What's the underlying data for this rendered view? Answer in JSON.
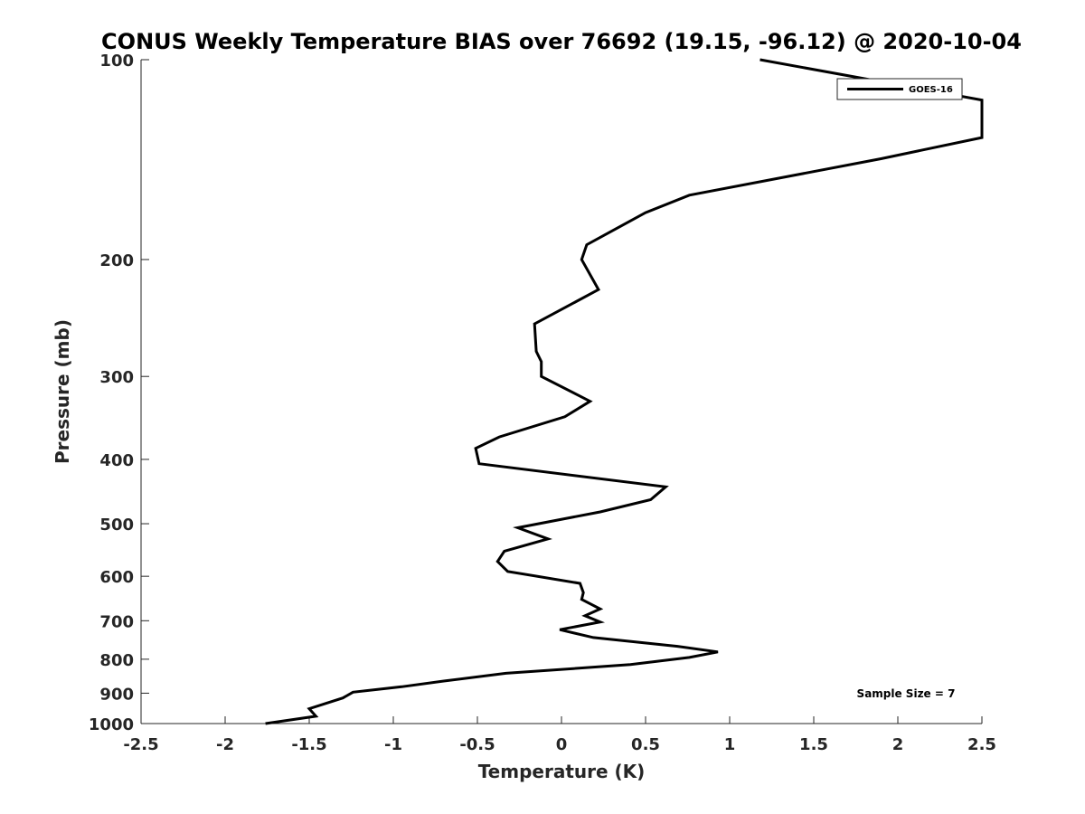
{
  "chart_data": {
    "type": "line",
    "title": "CONUS Weekly Temperature BIAS over 76692 (19.15, -96.12) @ 2020-10-04",
    "xlabel": "Temperature (K)",
    "ylabel": "Pressure (mb)",
    "xlim": [
      -2.5,
      2.5
    ],
    "ylim": [
      100,
      1000
    ],
    "yscale": "log",
    "y_reversed": true,
    "grid": false,
    "legend_position": "top-right",
    "x_ticks": [
      -2.5,
      -2,
      -1.5,
      -1,
      -0.5,
      0,
      0.5,
      1,
      1.5,
      2,
      2.5
    ],
    "x_tick_labels": [
      "-2.5",
      "-2",
      "-1.5",
      "-1",
      "-0.5",
      "0",
      "0.5",
      "1",
      "1.5",
      "2",
      "2.5"
    ],
    "y_ticks": [
      100,
      200,
      300,
      400,
      500,
      600,
      700,
      800,
      900,
      1000
    ],
    "y_tick_labels": [
      "100",
      "200",
      "300",
      "400",
      "500",
      "600",
      "700",
      "800",
      "900",
      "1000"
    ],
    "series": [
      {
        "name": "GOES-16",
        "color": "#000000",
        "points": [
          {
            "x": 1.18,
            "y": 100
          },
          {
            "x": 2.5,
            "y": 115
          },
          {
            "x": 2.5,
            "y": 131
          },
          {
            "x": 1.9,
            "y": 141
          },
          {
            "x": 0.76,
            "y": 160
          },
          {
            "x": 0.5,
            "y": 170
          },
          {
            "x": 0.15,
            "y": 190
          },
          {
            "x": 0.12,
            "y": 200
          },
          {
            "x": 0.22,
            "y": 222
          },
          {
            "x": -0.16,
            "y": 250
          },
          {
            "x": -0.15,
            "y": 275
          },
          {
            "x": -0.12,
            "y": 285
          },
          {
            "x": -0.12,
            "y": 300
          },
          {
            "x": 0.17,
            "y": 327
          },
          {
            "x": 0.02,
            "y": 345
          },
          {
            "x": -0.37,
            "y": 370
          },
          {
            "x": -0.51,
            "y": 385
          },
          {
            "x": -0.49,
            "y": 406
          },
          {
            "x": 0.62,
            "y": 440
          },
          {
            "x": 0.53,
            "y": 460
          },
          {
            "x": 0.23,
            "y": 480
          },
          {
            "x": -0.26,
            "y": 507
          },
          {
            "x": -0.08,
            "y": 527
          },
          {
            "x": -0.34,
            "y": 550
          },
          {
            "x": -0.38,
            "y": 570
          },
          {
            "x": -0.32,
            "y": 590
          },
          {
            "x": 0.11,
            "y": 615
          },
          {
            "x": 0.13,
            "y": 635
          },
          {
            "x": 0.12,
            "y": 650
          },
          {
            "x": 0.23,
            "y": 672
          },
          {
            "x": 0.14,
            "y": 688
          },
          {
            "x": 0.23,
            "y": 703
          },
          {
            "x": -0.01,
            "y": 722
          },
          {
            "x": 0.19,
            "y": 742
          },
          {
            "x": 0.69,
            "y": 765
          },
          {
            "x": 0.93,
            "y": 780
          },
          {
            "x": 0.76,
            "y": 795
          },
          {
            "x": 0.41,
            "y": 815
          },
          {
            "x": -0.33,
            "y": 840
          },
          {
            "x": -0.7,
            "y": 863
          },
          {
            "x": -0.95,
            "y": 880
          },
          {
            "x": -1.24,
            "y": 897
          },
          {
            "x": -1.3,
            "y": 915
          },
          {
            "x": -1.5,
            "y": 950
          },
          {
            "x": -1.46,
            "y": 975
          },
          {
            "x": -1.76,
            "y": 1000
          }
        ]
      }
    ],
    "annotations": [
      {
        "text": "Sample Size = 7",
        "position": "bottom-right"
      }
    ]
  }
}
